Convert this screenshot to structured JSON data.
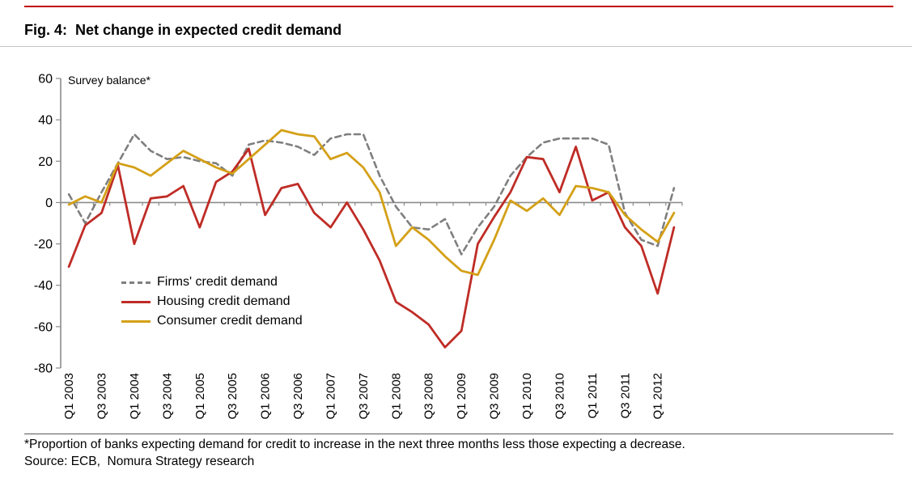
{
  "header": {
    "title": "Fig. 4:  Net change in expected credit demand"
  },
  "chart": {
    "axis_note": "Survey balance*"
  },
  "legend": [
    {
      "label": "Firms' credit demand",
      "color": "#7F7F7F",
      "style": "dashed"
    },
    {
      "label": "Housing credit demand",
      "color": "#BF2C26",
      "style": "solid"
    },
    {
      "label": "Consumer credit demand",
      "color": "#D4A017",
      "style": "solid"
    }
  ],
  "footer": {
    "footnote": "*Proportion of banks expecting demand for credit to increase in the next three months less those expecting a decrease.",
    "source": "Source: ECB,  Nomura Strategy research"
  },
  "chart_data": {
    "type": "line",
    "title": "Fig. 4: Net change in expected credit demand",
    "ylabel": "Survey balance*",
    "ylim": [
      -80,
      60
    ],
    "yticks": [
      60,
      40,
      20,
      0,
      -20,
      -40,
      -60,
      -80
    ],
    "grid": false,
    "legend_position": "inside-left",
    "x_categories": [
      "Q1 2003",
      "Q2 2003",
      "Q3 2003",
      "Q4 2003",
      "Q1 2004",
      "Q2 2004",
      "Q3 2004",
      "Q4 2004",
      "Q1 2005",
      "Q2 2005",
      "Q3 2005",
      "Q4 2005",
      "Q1 2006",
      "Q2 2006",
      "Q3 2006",
      "Q4 2006",
      "Q1 2007",
      "Q2 2007",
      "Q3 2007",
      "Q4 2007",
      "Q1 2008",
      "Q2 2008",
      "Q3 2008",
      "Q4 2008",
      "Q1 2009",
      "Q2 2009",
      "Q3 2009",
      "Q4 2009",
      "Q1 2010",
      "Q2 2010",
      "Q3 2010",
      "Q4 2010",
      "Q1 2011",
      "Q2 2011",
      "Q3 2011",
      "Q4 2011",
      "Q1 2012",
      "Q2 2012"
    ],
    "x_tick_labels": [
      "Q1 2003",
      "Q3 2003",
      "Q1 2004",
      "Q3 2004",
      "Q1 2005",
      "Q3 2005",
      "Q1 2006",
      "Q3 2006",
      "Q1 2007",
      "Q3 2007",
      "Q1 2008",
      "Q3 2008",
      "Q1 2009",
      "Q3 2009",
      "Q1 2010",
      "Q3 2010",
      "Q1 2011",
      "Q3 2011",
      "Q1 2012"
    ],
    "series": [
      {
        "name": "Firms' credit demand",
        "color": "#7F7F7F",
        "dash": "dashed",
        "values": [
          4,
          -10,
          5,
          19,
          33,
          25,
          21,
          22,
          20,
          19,
          13,
          28,
          30,
          29,
          27,
          23,
          31,
          33,
          33,
          13,
          -2,
          -12,
          -13,
          -8,
          -25,
          -12,
          -2,
          13,
          22,
          29,
          31,
          31,
          31,
          28,
          -5,
          -18,
          -21,
          7
        ]
      },
      {
        "name": "Housing credit demand",
        "color": "#BF2C26",
        "dash": "solid",
        "values": [
          -31,
          -11,
          -5,
          18,
          -20,
          2,
          3,
          8,
          -12,
          10,
          15,
          26,
          -6,
          7,
          9,
          -5,
          -12,
          0,
          -13,
          -28,
          -48,
          -53,
          -59,
          -70,
          -62,
          -20,
          -7,
          5,
          22,
          21,
          5,
          27,
          1,
          5,
          -12,
          -21,
          -44,
          -12
        ]
      },
      {
        "name": "Consumer credit demand",
        "color": "#D4A017",
        "dash": "solid",
        "values": [
          -1,
          3,
          0,
          19,
          17,
          13,
          19,
          25,
          21,
          17,
          14,
          21,
          28,
          35,
          33,
          32,
          21,
          24,
          17,
          5,
          -21,
          -12,
          -18,
          -26,
          -33,
          -35,
          -18,
          1,
          -4,
          2,
          -6,
          8,
          7,
          5,
          -6,
          -13,
          -19,
          -5
        ]
      }
    ]
  }
}
